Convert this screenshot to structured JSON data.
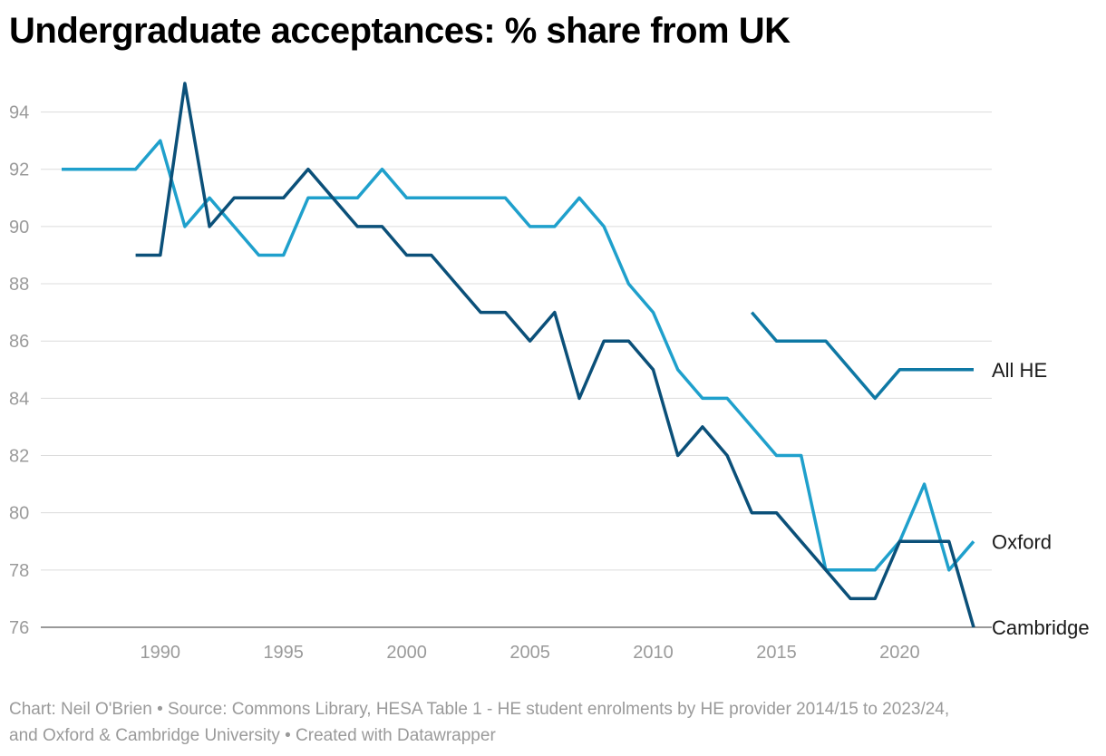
{
  "title": "Undergraduate acceptances: % share from UK",
  "footer": {
    "line1": "Chart: Neil O'Brien • Source: Commons Library, HESA Table 1 - HE student enrolments by HE provider 2014/15 to 2023/24,",
    "line2": "and Oxford & Cambridge University  • Created with Datawrapper"
  },
  "chart_data": {
    "type": "line",
    "title": "Undergraduate acceptances: % share from UK",
    "xlabel": "",
    "ylabel": "",
    "xlim": [
      1986,
      2023
    ],
    "ylim": [
      76,
      95
    ],
    "x_ticks": [
      1990,
      1995,
      2000,
      2005,
      2010,
      2015,
      2020
    ],
    "y_ticks": [
      76,
      78,
      80,
      82,
      84,
      86,
      88,
      90,
      92,
      94
    ],
    "grid": "horizontal",
    "legend": "direct labels at line ends (right)",
    "series": [
      {
        "name": "Oxford",
        "color": "#1fa0cc",
        "x": [
          1986,
          1987,
          1988,
          1989,
          1990,
          1991,
          1992,
          1993,
          1994,
          1995,
          1996,
          1997,
          1998,
          1999,
          2000,
          2001,
          2002,
          2003,
          2004,
          2005,
          2006,
          2007,
          2008,
          2009,
          2010,
          2011,
          2012,
          2013,
          2014,
          2015,
          2016,
          2017,
          2018,
          2019,
          2020,
          2021,
          2022,
          2023
        ],
        "values": [
          92,
          92,
          92,
          92,
          93,
          90,
          91,
          90,
          89,
          89,
          91,
          91,
          91,
          92,
          91,
          91,
          91,
          91,
          91,
          90,
          90,
          91,
          90,
          88,
          87,
          85,
          84,
          84,
          83,
          82,
          82,
          78,
          78,
          78,
          79,
          81,
          78,
          79
        ]
      },
      {
        "name": "Cambridge",
        "color": "#0b5079",
        "x": [
          1989,
          1990,
          1991,
          1992,
          1993,
          1994,
          1995,
          1996,
          1997,
          1998,
          1999,
          2000,
          2001,
          2002,
          2003,
          2004,
          2005,
          2006,
          2007,
          2008,
          2009,
          2010,
          2011,
          2012,
          2013,
          2014,
          2015,
          2016,
          2017,
          2018,
          2019,
          2020,
          2021,
          2022,
          2023
        ],
        "values": [
          89,
          89,
          95,
          90,
          91,
          91,
          91,
          92,
          91,
          90,
          90,
          89,
          89,
          88,
          87,
          87,
          86,
          87,
          84,
          86,
          86,
          85,
          82,
          83,
          82,
          80,
          80,
          79,
          78,
          77,
          77,
          79,
          79,
          79,
          76
        ]
      },
      {
        "name": "All HE",
        "color": "#0e78a4",
        "x": [
          2014,
          2015,
          2016,
          2017,
          2018,
          2019,
          2020,
          2021,
          2022,
          2023
        ],
        "values": [
          87,
          86,
          86,
          86,
          85,
          84,
          85,
          85,
          85,
          85
        ]
      }
    ]
  }
}
